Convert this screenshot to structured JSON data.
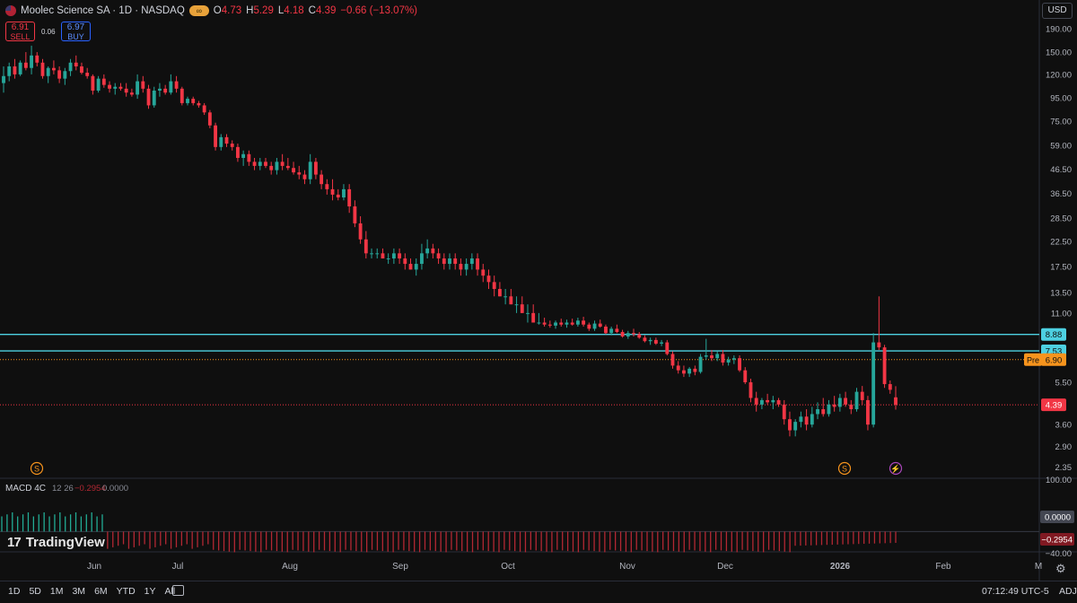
{
  "header": {
    "title": "Moolec Science SA · 1D · NASDAQ",
    "o_label": "O",
    "o_value": "4.73",
    "h_label": "H",
    "h_value": "5.29",
    "l_label": "L",
    "l_value": "4.18",
    "c_label": "C",
    "c_value": "4.39",
    "change": "−0.66 (−13.07%)"
  },
  "trade": {
    "sell_price": "6.91",
    "sell_label": "SELL",
    "spread": "0.06",
    "buy_price": "6.97",
    "buy_label": "BUY"
  },
  "currency": "USD",
  "branding": "TradingView",
  "colors": {
    "up": "#26a69a",
    "down": "#f23645",
    "hline": "#4dd0e1",
    "pre": "#f7941d"
  },
  "chart_data": {
    "type": "candlestick",
    "y_scale": "log",
    "ylim": [
      2.2,
      215
    ],
    "y_ticks": [
      "190.00",
      "150.00",
      "120.00",
      "95.00",
      "75.00",
      "59.00",
      "46.50",
      "36.50",
      "28.50",
      "22.50",
      "17.50",
      "13.50",
      "11.00",
      "5.50",
      "3.60",
      "2.90",
      "2.35"
    ],
    "x_labels": [
      "Jun",
      "Jul",
      "Aug",
      "Sep",
      "Oct",
      "Nov",
      "Dec",
      "2026",
      "Feb",
      "M"
    ],
    "horizontal_lines": [
      {
        "value": 8.88,
        "label": "8.88"
      },
      {
        "value": 7.53,
        "label": "7.53"
      }
    ],
    "pre_market": {
      "label": "Pre",
      "value": "6.90"
    },
    "last_price": {
      "value": 4.39,
      "label": "4.39"
    },
    "candles": [
      [
        110,
        130,
        100,
        118
      ],
      [
        118,
        135,
        112,
        130
      ],
      [
        130,
        140,
        115,
        120
      ],
      [
        120,
        138,
        118,
        135
      ],
      [
        135,
        150,
        125,
        128
      ],
      [
        128,
        160,
        120,
        145
      ],
      [
        145,
        150,
        130,
        135
      ],
      [
        135,
        140,
        115,
        118
      ],
      [
        118,
        130,
        110,
        128
      ],
      [
        128,
        138,
        120,
        125
      ],
      [
        125,
        130,
        110,
        115
      ],
      [
        115,
        128,
        108,
        124
      ],
      [
        124,
        140,
        118,
        135
      ],
      [
        135,
        145,
        125,
        130
      ],
      [
        130,
        135,
        120,
        122
      ],
      [
        122,
        128,
        115,
        118
      ],
      [
        118,
        120,
        98,
        102
      ],
      [
        102,
        118,
        100,
        115
      ],
      [
        115,
        120,
        105,
        108
      ],
      [
        108,
        112,
        100,
        104
      ],
      [
        104,
        110,
        98,
        106
      ],
      [
        106,
        110,
        102,
        104
      ],
      [
        104,
        110,
        96,
        100
      ],
      [
        100,
        104,
        96,
        98
      ],
      [
        98,
        120,
        94,
        112
      ],
      [
        112,
        118,
        100,
        104
      ],
      [
        104,
        108,
        85,
        88
      ],
      [
        88,
        106,
        86,
        102
      ],
      [
        102,
        110,
        96,
        104
      ],
      [
        104,
        108,
        98,
        100
      ],
      [
        100,
        120,
        98,
        112
      ],
      [
        112,
        118,
        100,
        104
      ],
      [
        104,
        106,
        88,
        90
      ],
      [
        90,
        96,
        88,
        94
      ],
      [
        94,
        96,
        88,
        90
      ],
      [
        90,
        92,
        86,
        88
      ],
      [
        88,
        90,
        80,
        82
      ],
      [
        82,
        84,
        70,
        72
      ],
      [
        72,
        74,
        56,
        58
      ],
      [
        58,
        66,
        56,
        64
      ],
      [
        64,
        66,
        58,
        60
      ],
      [
        60,
        62,
        56,
        58
      ],
      [
        58,
        60,
        50,
        52
      ],
      [
        52,
        56,
        48,
        54
      ],
      [
        54,
        56,
        48,
        50
      ],
      [
        50,
        52,
        46,
        48
      ],
      [
        48,
        52,
        46,
        50
      ],
      [
        50,
        52,
        47,
        48
      ],
      [
        48,
        50,
        44,
        46
      ],
      [
        46,
        52,
        44,
        50
      ],
      [
        50,
        54,
        46,
        48
      ],
      [
        48,
        52,
        46,
        47
      ],
      [
        47,
        50,
        44,
        45
      ],
      [
        45,
        48,
        42,
        44
      ],
      [
        44,
        46,
        40,
        42
      ],
      [
        42,
        54,
        40,
        50
      ],
      [
        50,
        52,
        42,
        44
      ],
      [
        44,
        46,
        38,
        40
      ],
      [
        40,
        42,
        36,
        38
      ],
      [
        38,
        42,
        34,
        36
      ],
      [
        36,
        38,
        34,
        35
      ],
      [
        35,
        40,
        34,
        38
      ],
      [
        38,
        40,
        30,
        32
      ],
      [
        32,
        34,
        26,
        27
      ],
      [
        27,
        29,
        22,
        23
      ],
      [
        23,
        25,
        19,
        20
      ],
      [
        20,
        21,
        19,
        20
      ],
      [
        20,
        21,
        19,
        20
      ],
      [
        20,
        21,
        19,
        19
      ],
      [
        19,
        20,
        18,
        19
      ],
      [
        19,
        21,
        18,
        20
      ],
      [
        20,
        21,
        18,
        19
      ],
      [
        19,
        20,
        17,
        18
      ],
      [
        18,
        19,
        17,
        17
      ],
      [
        17,
        19,
        16,
        18
      ],
      [
        18,
        22,
        17,
        20
      ],
      [
        20,
        23,
        19,
        21
      ],
      [
        21,
        22,
        19,
        20
      ],
      [
        20,
        21,
        18,
        19
      ],
      [
        19,
        20,
        17,
        18
      ],
      [
        18,
        20,
        17,
        19
      ],
      [
        19,
        20,
        17,
        18
      ],
      [
        18,
        19,
        16,
        17
      ],
      [
        17,
        19,
        16,
        18
      ],
      [
        18,
        20,
        17,
        19
      ],
      [
        19,
        20,
        16,
        17
      ],
      [
        17,
        18,
        15,
        16
      ],
      [
        16,
        17,
        14,
        15
      ],
      [
        15,
        16,
        13,
        14
      ],
      [
        14,
        15,
        13,
        13
      ],
      [
        13,
        14,
        12,
        13
      ],
      [
        13,
        14,
        12,
        12
      ],
      [
        12,
        13,
        11,
        12
      ],
      [
        12,
        13,
        11,
        11
      ],
      [
        11,
        12,
        10,
        11
      ],
      [
        11,
        12,
        10,
        10
      ],
      [
        10,
        11,
        9.8,
        10
      ],
      [
        10,
        10.5,
        9.6,
        9.8
      ],
      [
        9.8,
        10.2,
        9.5,
        9.7
      ],
      [
        9.7,
        10.2,
        9.4,
        10
      ],
      [
        10,
        10.4,
        9.6,
        9.8
      ],
      [
        9.8,
        10.3,
        9.5,
        10
      ],
      [
        10,
        10.4,
        9.7,
        9.8
      ],
      [
        9.8,
        10.5,
        9.6,
        10.2
      ],
      [
        10.2,
        10.6,
        9.6,
        9.8
      ],
      [
        9.8,
        10,
        9.2,
        9.4
      ],
      [
        9.4,
        10.2,
        9.2,
        9.9
      ],
      [
        9.9,
        10.3,
        9.5,
        9.6
      ],
      [
        9.6,
        9.8,
        8.9,
        9
      ],
      [
        9,
        9.6,
        8.8,
        9.4
      ],
      [
        9.4,
        9.8,
        9,
        9.1
      ],
      [
        9.1,
        9.3,
        8.6,
        8.7
      ],
      [
        8.7,
        9.2,
        8.5,
        9
      ],
      [
        9,
        9.4,
        8.7,
        8.9
      ],
      [
        8.9,
        9.1,
        8.5,
        8.6
      ],
      [
        8.6,
        8.8,
        8.2,
        8.3
      ],
      [
        8.3,
        8.6,
        8,
        8.4
      ],
      [
        8.4,
        8.6,
        8,
        8.1
      ],
      [
        8.1,
        8.4,
        7.9,
        8.2
      ],
      [
        8.2,
        8.4,
        7.2,
        7.3
      ],
      [
        7.3,
        7.5,
        6.3,
        6.5
      ],
      [
        6.5,
        6.8,
        6,
        6.2
      ],
      [
        6.2,
        6.5,
        5.8,
        6
      ],
      [
        6,
        6.4,
        5.8,
        6.3
      ],
      [
        6.3,
        6.5,
        5.9,
        6.1
      ],
      [
        6.1,
        7.3,
        6,
        7.1
      ],
      [
        7.1,
        8.5,
        6.9,
        7.2
      ],
      [
        7.2,
        7.6,
        6.8,
        7
      ],
      [
        7,
        7.5,
        6.8,
        7.3
      ],
      [
        7.3,
        7.6,
        6.5,
        6.7
      ],
      [
        6.7,
        7.1,
        6.5,
        6.9
      ],
      [
        6.9,
        7.2,
        6.6,
        7
      ],
      [
        7,
        7.2,
        6.1,
        6.2
      ],
      [
        6.2,
        6.4,
        5.4,
        5.5
      ],
      [
        5.5,
        5.7,
        4.5,
        4.7
      ],
      [
        4.7,
        5,
        4.1,
        4.4
      ],
      [
        4.4,
        4.7,
        4.2,
        4.6
      ],
      [
        4.6,
        4.9,
        4.4,
        4.5
      ],
      [
        4.5,
        4.8,
        4.2,
        4.6
      ],
      [
        4.6,
        4.7,
        4.3,
        4.4
      ],
      [
        4.4,
        4.6,
        3.6,
        3.8
      ],
      [
        3.8,
        4.1,
        3.2,
        3.4
      ],
      [
        3.4,
        3.8,
        3.2,
        3.7
      ],
      [
        3.7,
        4.1,
        3.5,
        3.9
      ],
      [
        3.9,
        4.2,
        3.4,
        3.6
      ],
      [
        3.6,
        4.3,
        3.5,
        4
      ],
      [
        4,
        4.5,
        3.8,
        4.2
      ],
      [
        4.2,
        4.7,
        3.9,
        4
      ],
      [
        4,
        4.6,
        3.9,
        4.4
      ],
      [
        4.4,
        4.8,
        4.1,
        4.3
      ],
      [
        4.3,
        4.9,
        4.1,
        4.7
      ],
      [
        4.7,
        5,
        4.3,
        4.4
      ],
      [
        4.4,
        4.6,
        4,
        4.2
      ],
      [
        4.2,
        5.2,
        4.1,
        5
      ],
      [
        5,
        5.3,
        4.4,
        4.6
      ],
      [
        4.6,
        4.8,
        3.4,
        3.6
      ],
      [
        3.6,
        9,
        3.5,
        8.2
      ],
      [
        8.2,
        13,
        7.6,
        7.8
      ],
      [
        7.8,
        8,
        5.2,
        5.4
      ],
      [
        5.4,
        5.6,
        4.9,
        5.1
      ],
      [
        4.73,
        5.29,
        4.18,
        4.39
      ]
    ],
    "macd": {
      "title": "MACD 4C",
      "params": "12 26",
      "value_hist": "−0.2954",
      "value_zero": "0.0000",
      "label_zero": "0.0000",
      "label_value": "−0.2954",
      "label_top": "100.00",
      "label_bottom": "−40.00",
      "range": [
        -40,
        100
      ]
    }
  },
  "bottom": {
    "ranges": [
      "1D",
      "5D",
      "1M",
      "3M",
      "6M",
      "YTD",
      "1Y",
      "All"
    ],
    "time": "07:12:49 UTC-5",
    "adj": "ADJ"
  }
}
